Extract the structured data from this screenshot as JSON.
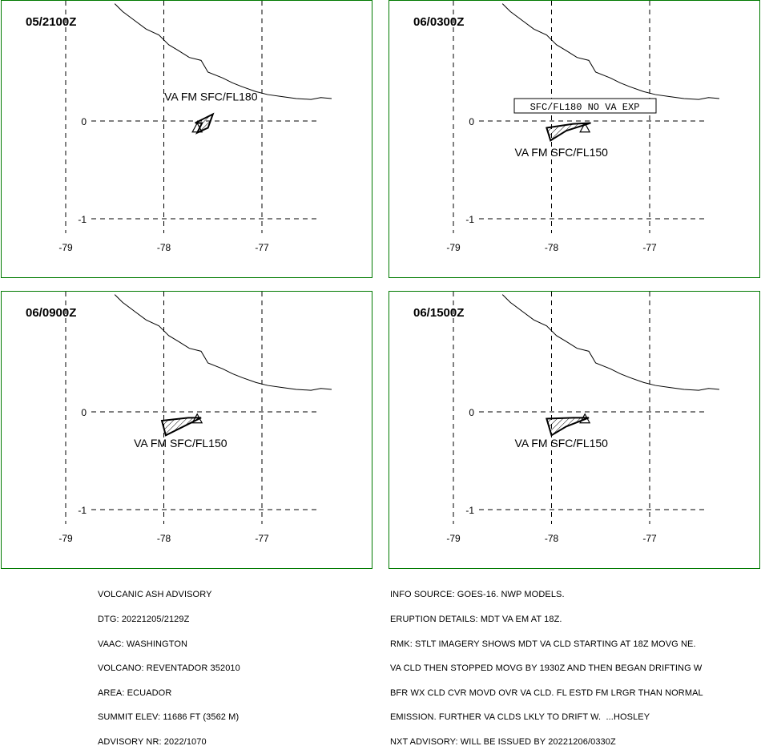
{
  "panels": [
    {
      "time": "05/2100Z",
      "label": "VA FM SFC/FL180",
      "shape": [
        [
          -77.68,
          -0.02
        ],
        [
          -77.5,
          0.07
        ],
        [
          -77.55,
          -0.07
        ],
        [
          -77.66,
          -0.12
        ],
        [
          -77.61,
          -0.02
        ]
      ],
      "label_pos": [
        -77.52,
        0.21
      ],
      "note": ""
    },
    {
      "time": "06/0300Z",
      "label": "VA FM SFC/FL150",
      "shape": [
        [
          -78.05,
          -0.07
        ],
        [
          -77.78,
          -0.03
        ],
        [
          -77.6,
          -0.02
        ],
        [
          -77.85,
          -0.1
        ],
        [
          -78.01,
          -0.2
        ]
      ],
      "label_pos": [
        -77.9,
        -0.36
      ],
      "note": "SFC/FL180 NO VA EXP"
    },
    {
      "time": "06/0900Z",
      "label": "VA FM SFC/FL150",
      "shape": [
        [
          -78.02,
          -0.09
        ],
        [
          -77.75,
          -0.06
        ],
        [
          -77.62,
          -0.06
        ],
        [
          -77.8,
          -0.15
        ],
        [
          -77.98,
          -0.24
        ]
      ],
      "label_pos": [
        -77.83,
        -0.36
      ],
      "note": ""
    },
    {
      "time": "06/1500Z",
      "label": "VA FM SFC/FL150",
      "shape": [
        [
          -78.05,
          -0.07
        ],
        [
          -77.78,
          -0.06
        ],
        [
          -77.62,
          -0.06
        ],
        [
          -77.85,
          -0.15
        ],
        [
          -78.0,
          -0.24
        ]
      ],
      "label_pos": [
        -77.9,
        -0.36
      ],
      "note": ""
    }
  ],
  "axes": {
    "lon_ticks": [
      "-79",
      "-78",
      "-77"
    ],
    "lat_ticks": [
      "0",
      "-1"
    ]
  },
  "advisory_left": [
    "VOLCANIC ASH ADVISORY",
    "DTG: 20221205/2129Z",
    "VAAC: WASHINGTON",
    "VOLCANO: REVENTADOR 352010",
    "AREA: ECUADOR",
    "SUMMIT ELEV: 11686 FT (3562 M)",
    "ADVISORY NR: 2022/1070"
  ],
  "advisory_right": [
    "INFO SOURCE: GOES-16. NWP MODELS.",
    "ERUPTION DETAILS: MDT VA EM AT 18Z.",
    "RMK: STLT IMAGERY SHOWS MDT VA CLD STARTING AT 18Z MOVG NE.",
    "VA CLD THEN STOPPED MOVG BY 1930Z AND THEN BEGAN DRIFTING W",
    "BFR WX CLD CVR MOVD OVR VA CLD. FL ESTD FM LRGR THAN NORMAL",
    "EMISSION. FURTHER VA CLDS LKLY TO DRIFT W.  ...HOSLEY",
    "NXT ADVISORY: WILL BE ISSUED BY 20221206/0330Z"
  ]
}
